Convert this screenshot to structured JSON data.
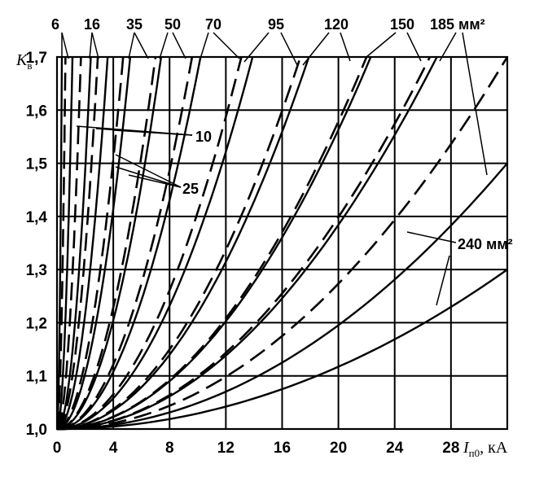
{
  "chart_data": {
    "type": "line",
    "ylabel_main": "K",
    "ylabel_sub": "в",
    "xlabel_main": "I",
    "xlabel_sub": "п0",
    "xlabel_unit": ", кА",
    "xlim": [
      0,
      32
    ],
    "ylim": [
      1.0,
      1.7
    ],
    "x_ticks": [
      0,
      4,
      8,
      12,
      16,
      20,
      24,
      28
    ],
    "x_tick_labels": [
      "0",
      "4",
      "8",
      "12",
      "16",
      "20",
      "24",
      "28"
    ],
    "y_ticks": [
      1.0,
      1.1,
      1.2,
      1.3,
      1.4,
      1.5,
      1.6,
      1.7
    ],
    "y_tick_labels": [
      "1,0",
      "1,1",
      "1,2",
      "1,3",
      "1,4",
      "1,5",
      "1,6",
      "1,7"
    ],
    "grid": true,
    "series": [
      {
        "section": 6,
        "style": "solid",
        "x_at_max": 0.35
      },
      {
        "section": 6,
        "style": "dashed",
        "x_at_max": 0.6
      },
      {
        "section": 10,
        "style": "solid",
        "x_at_max": 1.1
      },
      {
        "section": 10,
        "style": "dashed",
        "x_at_max": 1.7
      },
      {
        "section": 16,
        "style": "solid",
        "x_at_max": 2.4
      },
      {
        "section": 16,
        "style": "dashed",
        "x_at_max": 2.9
      },
      {
        "section": 25,
        "style": "solid",
        "x_at_max": 3.6
      },
      {
        "section": 25,
        "style": "dashed",
        "x_at_max": 4.7
      },
      {
        "section": 35,
        "style": "solid",
        "x_at_max": 5.2
      },
      {
        "section": 35,
        "style": "dashed",
        "x_at_max": 7.0
      },
      {
        "section": 50,
        "style": "solid",
        "x_at_max": 7.4
      },
      {
        "section": 50,
        "style": "dashed",
        "x_at_max": 9.6
      },
      {
        "section": 70,
        "style": "solid",
        "x_at_max": 10.2
      },
      {
        "section": 70,
        "style": "dashed",
        "x_at_max": 13.1
      },
      {
        "section": 95,
        "style": "solid",
        "x_at_max": 13.9
      },
      {
        "section": 95,
        "style": "dashed",
        "x_at_max": 17.3
      },
      {
        "section": 120,
        "style": "solid",
        "x_at_max": 17.9
      },
      {
        "section": 120,
        "style": "dashed",
        "x_at_max": 22.0
      },
      {
        "section": 150,
        "style": "solid",
        "x_at_max": 22.3
      },
      {
        "section": 150,
        "style": "dashed",
        "x_at_max": 26.5
      },
      {
        "section": 185,
        "style": "solid",
        "x_at_max": 27.0
      },
      {
        "section": 185,
        "style": "dashed",
        "x_at_max": 32.0
      },
      {
        "section": 240,
        "style": "solid",
        "x_at_1_5": 32.0
      },
      {
        "section": 240,
        "style": "solid",
        "x_at_1_3": 32.0
      }
    ],
    "top_labels": [
      "6",
      "16",
      "35",
      "50",
      "70",
      "95",
      "120",
      "150",
      "185 мм²"
    ],
    "inner_labels": [
      "10",
      "25",
      "240 мм²"
    ]
  }
}
